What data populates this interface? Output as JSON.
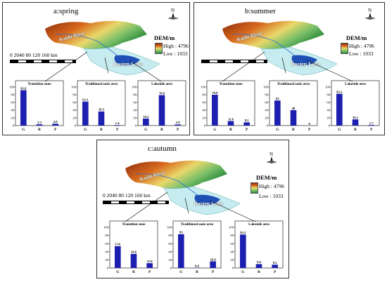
{
  "legend": {
    "dem_title": "DEM/m",
    "high": "High : 4796",
    "low": "Low : 1033",
    "colors": [
      "#8b2a0c",
      "#d86a1e",
      "#e9d86a",
      "#7cc06a",
      "#2c8a3a"
    ]
  },
  "map_labels": {
    "river": "Kaidu River",
    "lake": "Bosten Lake",
    "compass_n": "N",
    "scale": "0 2040   80   120   160 km"
  },
  "panels": [
    {
      "title": "a:spring"
    },
    {
      "title": "b:summer"
    },
    {
      "title": "c:autumn"
    }
  ],
  "chart_data": [
    {
      "type": "bar",
      "panel": "a:spring",
      "title": "Transition zone",
      "categories": [
        "G",
        "R",
        "P"
      ],
      "values": [
        91.8,
        3.3,
        4.9
      ],
      "labels": [
        "91.8",
        "3.3",
        "4.9"
      ],
      "ylim": [
        0,
        100
      ],
      "yticks": [
        0,
        20,
        40,
        60,
        80,
        100
      ]
    },
    {
      "type": "bar",
      "panel": "a:spring",
      "title": "Traditional oasis area",
      "categories": [
        "G",
        "R",
        "P"
      ],
      "values": [
        62.1,
        36.5,
        1.4
      ],
      "labels": [
        "62.1",
        "36.5",
        "1.4"
      ],
      "ylim": [
        0,
        100
      ],
      "yticks": [
        0,
        20,
        40,
        60,
        80,
        100
      ]
    },
    {
      "type": "bar",
      "panel": "a:spring",
      "title": "Lakeside area",
      "categories": [
        "G",
        "R",
        "P"
      ],
      "values": [
        18.2,
        78.9,
        2.9
      ],
      "labels": [
        "18.2",
        "78.9",
        "2.9"
      ],
      "ylim": [
        0,
        100
      ],
      "yticks": [
        0,
        20,
        40,
        60,
        80,
        100
      ]
    },
    {
      "type": "bar",
      "panel": "b:summer",
      "title": "Transition zone",
      "categories": [
        "G",
        "R",
        "P"
      ],
      "values": [
        79.9,
        11.6,
        8.5
      ],
      "labels": [
        "79.9",
        "11.6",
        "8.5"
      ],
      "ylim": [
        0,
        100
      ],
      "yticks": [
        0,
        20,
        40,
        60,
        80,
        100
      ]
    },
    {
      "type": "bar",
      "panel": "b:summer",
      "title": "Traditional oasis area",
      "categories": [
        "G",
        "R",
        "P"
      ],
      "values": [
        65,
        40,
        0
      ],
      "labels": [
        "65",
        "40",
        "0"
      ],
      "ylim": [
        0,
        100
      ],
      "yticks": [
        0,
        20,
        40,
        60,
        80,
        100
      ]
    },
    {
      "type": "bar",
      "panel": "b:summer",
      "title": "Lakeside area",
      "categories": [
        "G",
        "R",
        "P"
      ],
      "values": [
        82.2,
        16.1,
        1.7
      ],
      "labels": [
        "82.2",
        "16.1",
        "1.7"
      ],
      "ylim": [
        0,
        100
      ],
      "yticks": [
        0,
        20,
        40,
        60,
        80,
        100
      ]
    },
    {
      "type": "bar",
      "panel": "c:autumn",
      "title": "Transition zone",
      "categories": [
        "G",
        "R",
        "P"
      ],
      "values": [
        53.6,
        34.6,
        11.8
      ],
      "labels": [
        "53.6",
        "34.6",
        "11.8"
      ],
      "ylim": [
        0,
        100
      ],
      "yticks": [
        0,
        20,
        40,
        60,
        80,
        100
      ]
    },
    {
      "type": "bar",
      "panel": "c:autumn",
      "title": "Traditional oasis area",
      "categories": [
        "G",
        "R",
        "P"
      ],
      "values": [
        83,
        0.6,
        16.4
      ],
      "labels": [
        "83",
        "0.6",
        "16.4"
      ],
      "ylim": [
        0,
        100
      ],
      "yticks": [
        0,
        20,
        40,
        60,
        80,
        100
      ]
    },
    {
      "type": "bar",
      "panel": "c:autumn",
      "title": "Lakeside area",
      "categories": [
        "G",
        "R",
        "P"
      ],
      "values": [
        82.2,
        9.6,
        8.2
      ],
      "labels": [
        "82.2",
        "9.6",
        "8.2"
      ],
      "ylim": [
        0,
        100
      ],
      "yticks": [
        0,
        20,
        40,
        60,
        80,
        100
      ]
    }
  ]
}
